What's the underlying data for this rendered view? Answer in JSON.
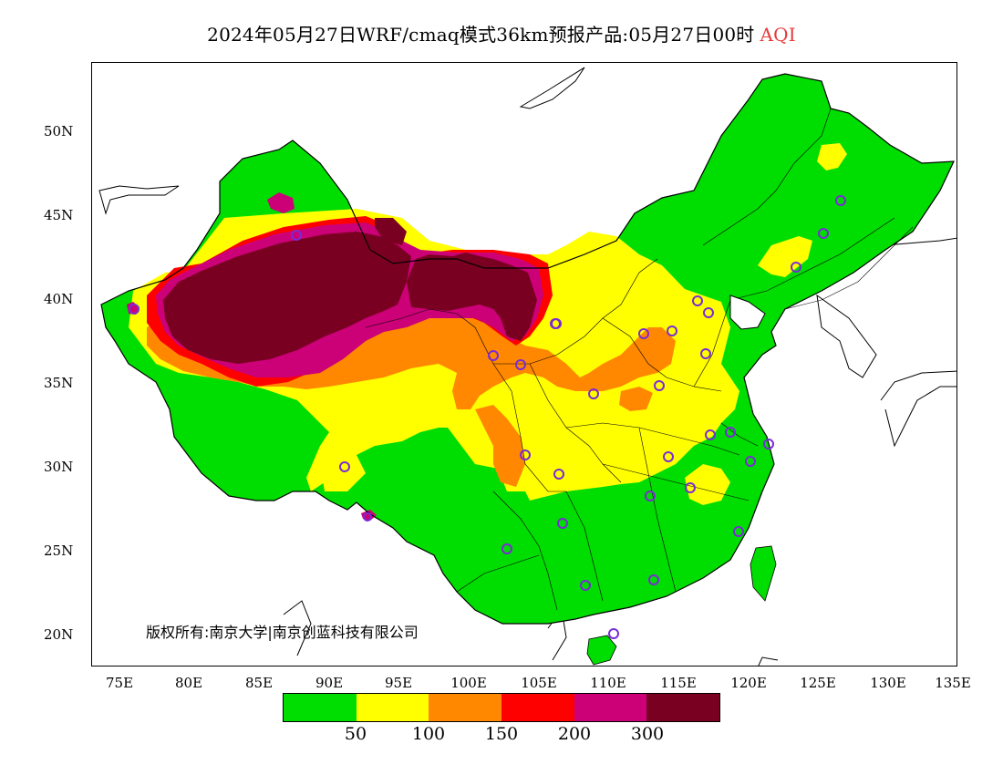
{
  "title": {
    "main": "2024年05月27日WRF/cmaq模式36km预报产品:05月27日00时",
    "variable": "AQI",
    "variable_color": "#e83a3a"
  },
  "axes": {
    "lat_labels": [
      "50N",
      "45N",
      "40N",
      "35N",
      "30N",
      "25N",
      "20N"
    ],
    "lon_labels": [
      "75E",
      "80E",
      "85E",
      "90E",
      "95E",
      "100E",
      "105E",
      "110E",
      "115E",
      "120E",
      "125E",
      "130E",
      "135E"
    ]
  },
  "copyright": "版权所有:南京大学|南京创蓝科技有限公司",
  "legend": {
    "colors": [
      "#00dd00",
      "#ffff00",
      "#ff8800",
      "#ff0000",
      "#cc0077",
      "#7a0022"
    ],
    "ticks": [
      "50",
      "100",
      "150",
      "200",
      "300"
    ]
  },
  "palette": {
    "good": "#00dd00",
    "moderate": "#ffff00",
    "sensitive": "#ff8800",
    "unhealthy": "#ff0000",
    "very_unhealthy": "#cc0077",
    "hazardous": "#7a0022",
    "city_marker": "#7a2bd6"
  }
}
